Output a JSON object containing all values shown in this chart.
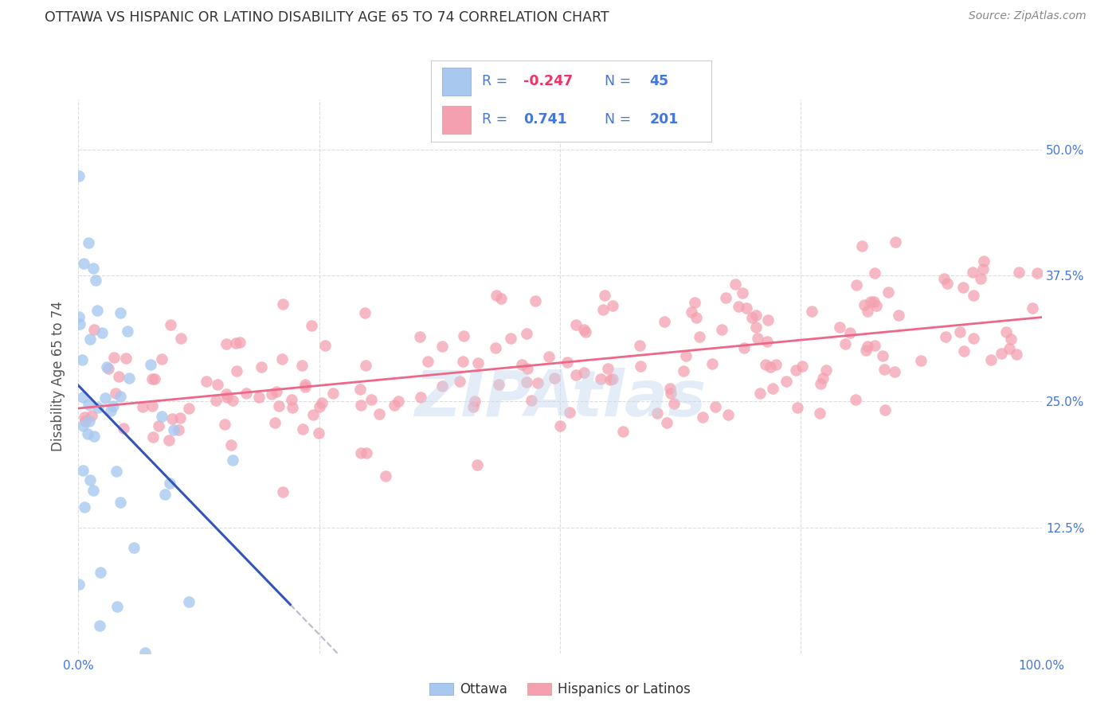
{
  "title": "OTTAWA VS HISPANIC OR LATINO DISABILITY AGE 65 TO 74 CORRELATION CHART",
  "source": "Source: ZipAtlas.com",
  "ylabel": "Disability Age 65 to 74",
  "watermark": "ZIPAtlas",
  "xlim": [
    0.0,
    1.0
  ],
  "ylim": [
    0.0,
    0.55
  ],
  "yticks": [
    0.0,
    0.125,
    0.25,
    0.375,
    0.5
  ],
  "ytick_labels": [
    "",
    "12.5%",
    "25.0%",
    "37.5%",
    "50.0%"
  ],
  "xticks": [
    0.0,
    0.25,
    0.5,
    0.75,
    1.0
  ],
  "xtick_labels": [
    "0.0%",
    "",
    "",
    "",
    "100.0%"
  ],
  "ottawa_R": -0.247,
  "ottawa_N": 45,
  "hispanic_R": 0.741,
  "hispanic_N": 201,
  "ottawa_color": "#a8c8f0",
  "hispanic_color": "#f4a0b0",
  "ottawa_line_color": "#3355bb",
  "hispanic_line_color": "#ee6688",
  "dashed_line_color": "#bbbbcc",
  "grid_color": "#dddddd",
  "title_color": "#333333",
  "axis_label_color": "#555555",
  "text_blue": "#4477dd",
  "neg_r_color": "#ee3366",
  "background_color": "#ffffff",
  "ottawa_seed": 12,
  "hispanic_seed": 99
}
